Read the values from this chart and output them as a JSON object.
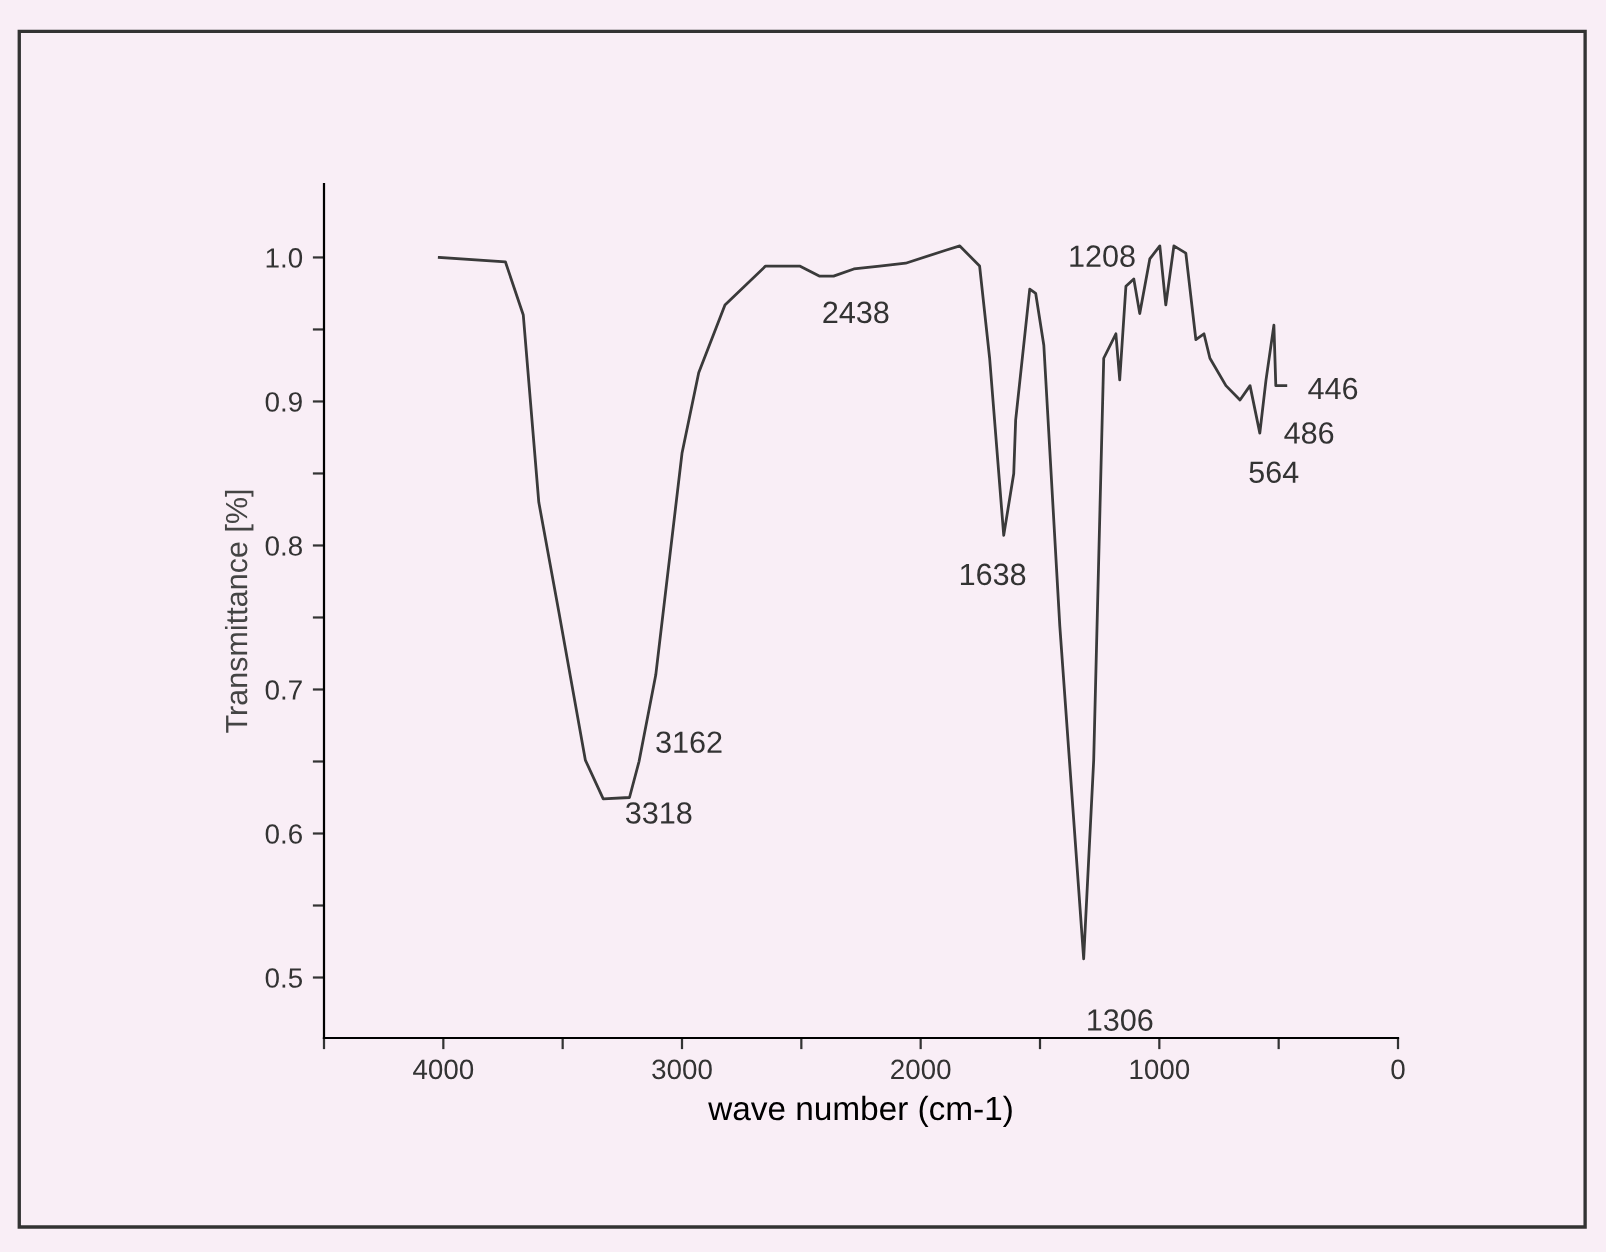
{
  "chart_data": {
    "type": "line",
    "xlabel": "wave number (cm-1)",
    "ylabel": "Transmittance [%]",
    "xlim": [
      4500,
      0
    ],
    "ylim": [
      0.458,
      1.051
    ],
    "xticks": [
      {
        "value": 4500,
        "label": null
      },
      4000,
      {
        "value": 3500,
        "label": null
      },
      3000,
      {
        "value": 2500,
        "label": null
      },
      2000,
      {
        "value": 1500,
        "label": null
      },
      1000,
      {
        "value": 500,
        "label": null
      },
      0
    ],
    "yticks": [
      0.5,
      {
        "value": 0.55,
        "label": null
      },
      0.6,
      {
        "value": 0.65,
        "label": null
      },
      0.7,
      {
        "value": 0.75,
        "label": null
      },
      0.8,
      {
        "value": 0.85,
        "label": null
      },
      0.9,
      {
        "value": 0.95,
        "label": null
      },
      {
        "value": 1.0,
        "label": "1.0"
      }
    ],
    "grid": false,
    "marker": "none",
    "line_style": "solid",
    "series": [
      {
        "color": "#3a3a3a",
        "x": [
          4017,
          3740,
          3665,
          3600,
          3515,
          3405,
          3330,
          3220,
          3180,
          3110,
          3000,
          2930,
          2820,
          2650,
          2507,
          2423,
          2365,
          2280,
          2172,
          2063,
          1895,
          1836,
          1753,
          1711,
          1652,
          1610,
          1602,
          1543,
          1518,
          1484,
          1417,
          1317,
          1275,
          1233,
          1182,
          1166,
          1140,
          1107,
          1082,
          1040,
          998,
          973,
          939,
          889,
          847,
          813,
          788,
          721,
          662,
          620,
          579,
          553,
          520,
          512,
          470
        ],
        "values": [
          1.0,
          0.997,
          0.96,
          0.83,
          0.753,
          0.651,
          0.624,
          0.625,
          0.65,
          0.71,
          0.864,
          0.92,
          0.967,
          0.994,
          0.994,
          0.987,
          0.987,
          0.992,
          0.994,
          0.996,
          1.005,
          1.008,
          0.994,
          0.93,
          0.807,
          0.85,
          0.887,
          0.978,
          0.975,
          0.939,
          0.744,
          0.513,
          0.651,
          0.93,
          0.947,
          0.915,
          0.98,
          0.985,
          0.961,
          0.999,
          1.008,
          0.967,
          1.008,
          1.003,
          0.943,
          0.947,
          0.93,
          0.911,
          0.901,
          0.911,
          0.878,
          0.915,
          0.953,
          0.911,
          0.911
        ]
      }
    ],
    "annotations": [
      {
        "text": "3318",
        "x": 3330,
        "y": 0.624
      },
      {
        "text": "3162",
        "x": 3180,
        "y": 0.65
      },
      {
        "text": "2438",
        "x": 2423,
        "y": 0.987
      },
      {
        "text": "1638",
        "x": 1652,
        "y": 0.807
      },
      {
        "text": "1306",
        "x": 1317,
        "y": 0.513
      },
      {
        "text": "1208",
        "x": 1182,
        "y": 0.947
      },
      {
        "text": "446",
        "x": 470,
        "y": 0.911
      },
      {
        "text": "486",
        "x": 512,
        "y": 0.911
      },
      {
        "text": "564",
        "x": 579,
        "y": 0.878
      }
    ]
  }
}
